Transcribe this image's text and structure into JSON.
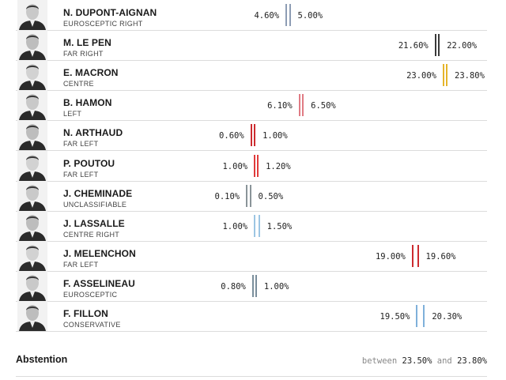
{
  "candidates": [
    {
      "name": "N. DUPONT-AIGNAN",
      "party": "EUROSCEPTIC RIGHT",
      "low": "4.60%",
      "high": "5.00%",
      "low_value": 4.6,
      "high_value": 5.0,
      "color": "#8d9db4"
    },
    {
      "name": "M. LE PEN",
      "party": "FAR RIGHT",
      "low": "21.60%",
      "high": "22.00%",
      "low_value": 21.6,
      "high_value": 22.0,
      "color": "#3a3a3a"
    },
    {
      "name": "E. MACRON",
      "party": "CENTRE",
      "low": "23.00%",
      "high": "23.80%",
      "low_value": 23.0,
      "high_value": 23.8,
      "color": "#e5b52b"
    },
    {
      "name": "B. HAMON",
      "party": "LEFT",
      "low": "6.10%",
      "high": "6.50%",
      "low_value": 6.1,
      "high_value": 6.5,
      "color": "#e07b84"
    },
    {
      "name": "N. ARTHAUD",
      "party": "FAR LEFT",
      "low": "0.60%",
      "high": "1.00%",
      "low_value": 0.6,
      "high_value": 1.0,
      "color": "#cc2b2f"
    },
    {
      "name": "P. POUTOU",
      "party": "FAR LEFT",
      "low": "1.00%",
      "high": "1.20%",
      "low_value": 1.0,
      "high_value": 1.2,
      "color": "#e03c3c"
    },
    {
      "name": "J. CHEMINADE",
      "party": "UNCLASSIFIABLE",
      "low": "0.10%",
      "high": "0.50%",
      "low_value": 0.1,
      "high_value": 0.5,
      "color": "#8a9499"
    },
    {
      "name": "J. LASSALLE",
      "party": "CENTRE RIGHT",
      "low": "1.00%",
      "high": "1.50%",
      "low_value": 1.0,
      "high_value": 1.5,
      "color": "#9cc5e3"
    },
    {
      "name": "J. MELENCHON",
      "party": "FAR LEFT",
      "low": "19.00%",
      "high": "19.60%",
      "low_value": 19.0,
      "high_value": 19.6,
      "color": "#cc2b2f"
    },
    {
      "name": "F. ASSELINEAU",
      "party": "EUROSCEPTIC",
      "low": "0.80%",
      "high": "1.00%",
      "low_value": 0.8,
      "high_value": 1.0,
      "color": "#7a8e9c"
    },
    {
      "name": "F. FILLON",
      "party": "CONSERVATIVE",
      "low": "19.50%",
      "high": "20.30%",
      "low_value": 19.5,
      "high_value": 20.3,
      "color": "#7fb0da"
    }
  ],
  "abstention": {
    "label": "Abstention",
    "between": "between",
    "low": "23.50%",
    "and": "and",
    "high": "23.80%"
  }
}
